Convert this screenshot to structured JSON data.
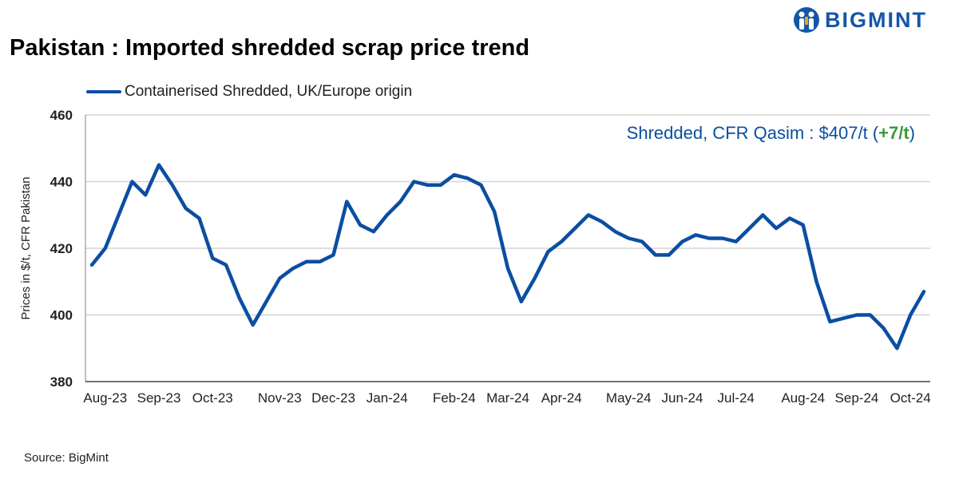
{
  "title": "Pakistan : Imported shredded scrap price trend",
  "logo": "BIGMINT",
  "source": "Source: BigMint",
  "colors": {
    "line": "#0b4ea2",
    "change": "#3a9a3a",
    "grid": "#d4d4d4"
  },
  "chart_data": {
    "type": "line",
    "title": "Pakistan : Imported shredded scrap price trend",
    "ylabel": "Prices in $/t, CFR Pakistan",
    "xlabel": "",
    "ylim": [
      380,
      460
    ],
    "yticks": [
      380,
      400,
      420,
      440,
      460
    ],
    "grid": true,
    "legend_placement": "top-left",
    "annotation": {
      "text": "Shredded, CFR Qasim : $407/t (",
      "change": "+7/t",
      "close": ")"
    },
    "x_ticks": [
      {
        "index": 1,
        "label": "Aug-23"
      },
      {
        "index": 5,
        "label": "Sep-23"
      },
      {
        "index": 9,
        "label": "Oct-23"
      },
      {
        "index": 14,
        "label": "Nov-23"
      },
      {
        "index": 18,
        "label": "Dec-23"
      },
      {
        "index": 22,
        "label": "Jan-24"
      },
      {
        "index": 27,
        "label": "Feb-24"
      },
      {
        "index": 31,
        "label": "Mar-24"
      },
      {
        "index": 35,
        "label": "Apr-24"
      },
      {
        "index": 40,
        "label": "May-24"
      },
      {
        "index": 44,
        "label": "Jun-24"
      },
      {
        "index": 48,
        "label": "Jul-24"
      },
      {
        "index": 53,
        "label": "Aug-24"
      },
      {
        "index": 57,
        "label": "Sep-24"
      },
      {
        "index": 61,
        "label": "Oct-24"
      }
    ],
    "series": [
      {
        "name": "Containerised Shredded, UK/Europe origin",
        "values": [
          415,
          420,
          430,
          440,
          436,
          445,
          439,
          432,
          429,
          417,
          415,
          405,
          397,
          404,
          411,
          414,
          416,
          416,
          418,
          434,
          427,
          425,
          430,
          434,
          440,
          439,
          439,
          442,
          441,
          439,
          431,
          414,
          404,
          411,
          419,
          422,
          426,
          430,
          428,
          425,
          423,
          422,
          418,
          418,
          422,
          424,
          423,
          423,
          422,
          426,
          430,
          426,
          429,
          427,
          410,
          398,
          399,
          400,
          400,
          396,
          390,
          400,
          407
        ]
      }
    ]
  }
}
